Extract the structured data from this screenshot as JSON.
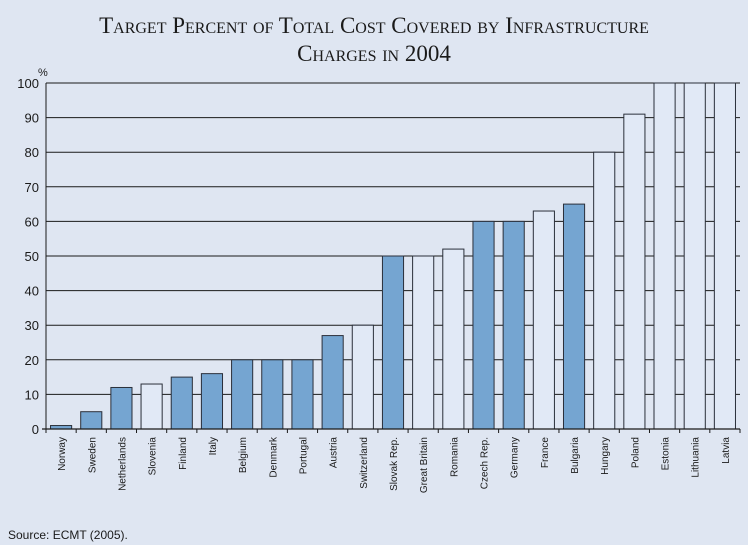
{
  "chart_data": {
    "type": "bar",
    "title_line1": "Target Percent of Total Cost Covered by Infrastructure",
    "title_line2": "Charges in 2004",
    "ylabel": "%",
    "ylim": [
      0,
      100
    ],
    "yticks": [
      "0",
      "10",
      "20",
      "30",
      "40",
      "50",
      "60",
      "70",
      "80",
      "90",
      "100"
    ],
    "grid": true,
    "categories": [
      "Norway",
      "Sweden",
      "Netherlands",
      "Slovenia",
      "Finland",
      "Italy",
      "Belgium",
      "Denmark",
      "Portugal",
      "Austria",
      "Switzerland",
      "Slovak Rep.",
      "Great Britain",
      "Romania",
      "Czech Rep.",
      "Germany",
      "France",
      "Bulgaria",
      "Hungary",
      "Poland",
      "Estonia",
      "Lithuania",
      "Latvia"
    ],
    "values": [
      1,
      5,
      12,
      13,
      15,
      16,
      20,
      20,
      20,
      27,
      30,
      50,
      50,
      52,
      60,
      60,
      63,
      65,
      80,
      91,
      100,
      100,
      100
    ],
    "bar_fill": [
      "dark",
      "dark",
      "dark",
      "light",
      "dark",
      "dark",
      "dark",
      "dark",
      "dark",
      "dark",
      "light",
      "dark",
      "light",
      "light",
      "dark",
      "dark",
      "light",
      "dark",
      "light",
      "light",
      "light",
      "light",
      "light"
    ],
    "colors": {
      "dark": "#75a5d1",
      "light": "#e1e9f6",
      "stroke": "#2a2f3a",
      "grid": "#1a1a1a",
      "background": "#dfe6f2"
    },
    "source": "Source: ECMT (2005)."
  }
}
